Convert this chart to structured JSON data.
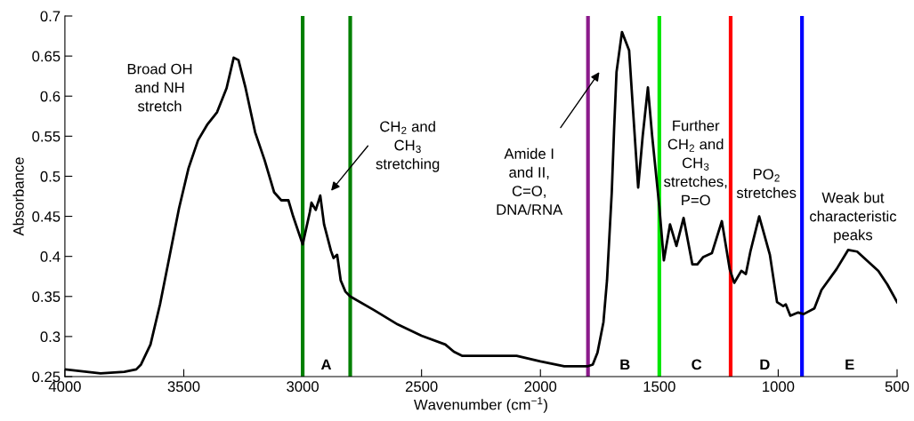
{
  "chart_data": {
    "type": "line",
    "xlabel": "Wavenumber (cm$^{−1}$)",
    "ylabel": "Absorbance",
    "xlim": [
      4000,
      500
    ],
    "xticks": [
      4000,
      3500,
      3000,
      2500,
      2000,
      1500,
      1000,
      500
    ],
    "ylim": [
      0.25,
      0.7
    ],
    "yticks": [
      0.25,
      0.3,
      0.35,
      0.4,
      0.45,
      0.5,
      0.55,
      0.6,
      0.65,
      0.7
    ],
    "grid": false,
    "marker": "none",
    "line_style": "solid",
    "series": [
      {
        "color": "#000000",
        "x": [
          4000,
          3850,
          3750,
          3700,
          3680,
          3640,
          3600,
          3560,
          3520,
          3480,
          3440,
          3400,
          3360,
          3320,
          3290,
          3270,
          3240,
          3200,
          3160,
          3120,
          3090,
          3060,
          3040,
          3000,
          2970,
          2963,
          2945,
          2926,
          2910,
          2881,
          2870,
          2855,
          2840,
          2820,
          2800,
          2700,
          2600,
          2500,
          2400,
          2364,
          2330,
          2200,
          2100,
          2000,
          1900,
          1800,
          1780,
          1760,
          1735,
          1720,
          1700,
          1690,
          1680,
          1657,
          1627,
          1610,
          1589,
          1570,
          1548,
          1530,
          1500,
          1481,
          1455,
          1428,
          1398,
          1361,
          1340,
          1316,
          1279,
          1237,
          1204,
          1185,
          1155,
          1136,
          1117,
          1080,
          1035,
          1005,
          979,
          968,
          949,
          916,
          893,
          848,
          818,
          755,
          706,
          668,
          579,
          541,
          500
        ],
        "values": [
          0.259,
          0.254,
          0.256,
          0.259,
          0.265,
          0.29,
          0.34,
          0.4,
          0.46,
          0.51,
          0.545,
          0.565,
          0.58,
          0.61,
          0.648,
          0.645,
          0.61,
          0.555,
          0.52,
          0.48,
          0.47,
          0.47,
          0.45,
          0.415,
          0.455,
          0.467,
          0.458,
          0.476,
          0.44,
          0.407,
          0.398,
          0.402,
          0.37,
          0.356,
          0.35,
          0.333,
          0.315,
          0.301,
          0.29,
          0.281,
          0.276,
          0.276,
          0.276,
          0.269,
          0.263,
          0.263,
          0.265,
          0.28,
          0.318,
          0.37,
          0.48,
          0.56,
          0.63,
          0.68,
          0.657,
          0.58,
          0.486,
          0.55,
          0.611,
          0.55,
          0.462,
          0.395,
          0.44,
          0.413,
          0.448,
          0.39,
          0.39,
          0.399,
          0.404,
          0.444,
          0.384,
          0.367,
          0.382,
          0.378,
          0.406,
          0.45,
          0.402,
          0.343,
          0.338,
          0.34,
          0.326,
          0.33,
          0.328,
          0.335,
          0.358,
          0.384,
          0.408,
          0.406,
          0.382,
          0.365,
          0.343
        ]
      }
    ],
    "ref_lines": [
      {
        "axis": "x",
        "value": 3000,
        "color": "#008000"
      },
      {
        "axis": "x",
        "value": 2800,
        "color": "#008000"
      },
      {
        "axis": "x",
        "value": 1800,
        "color": "#8b1a8b"
      },
      {
        "axis": "x",
        "value": 1500,
        "color": "#00e600"
      },
      {
        "axis": "x",
        "value": 1200,
        "color": "#ff0000"
      },
      {
        "axis": "x",
        "value": 900,
        "color": "#0000ff"
      }
    ],
    "annotations": [
      "Broad OH\nand NH\nstretch",
      "CH$_{2}$ and\nCH$_{3}$\nstretching",
      "Amide I\nand II,\nC=O,\nDNA/RNA",
      "Further\nCH$_{2}$ and\nCH$_{3}$\nstretches,\nP=O",
      "PO$_{2}$\nstretches",
      "Weak but\ncharacteristic\npeaks",
      "A",
      "B",
      "C",
      "D",
      "E"
    ]
  }
}
